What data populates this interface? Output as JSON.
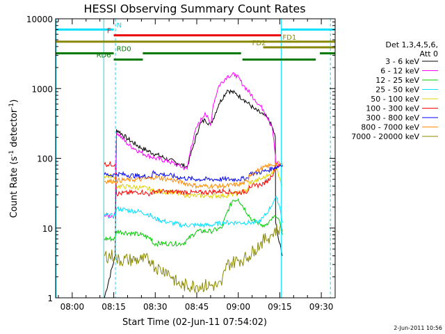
{
  "chart_data": {
    "type": "line",
    "title": "HESSI Observing Summary Count Rates",
    "xlabel": "Start Time (02-Jun-11 07:54:02)",
    "ylabel": "Count Rate (s⁻¹ detector⁻¹)",
    "ylabel_parts": [
      "Count Rate (s",
      "-1",
      " detector",
      "-1",
      ")"
    ],
    "x_unit": "minutes",
    "xlim": [
      474,
      575
    ],
    "ylim": [
      1,
      10000
    ],
    "y_scale": "log",
    "grid": false,
    "legend_position": "right",
    "x_ticks": [
      {
        "value": 480,
        "label": "08:00"
      },
      {
        "value": 495,
        "label": "08:15"
      },
      {
        "value": 510,
        "label": "08:30"
      },
      {
        "value": 525,
        "label": "08:45"
      },
      {
        "value": 540,
        "label": "09:00"
      },
      {
        "value": 555,
        "label": "09:15"
      },
      {
        "value": 570,
        "label": "09:30"
      }
    ],
    "y_ticks": [
      {
        "value": 1,
        "label": "1"
      },
      {
        "value": 10,
        "label": "10"
      },
      {
        "value": 100,
        "label": "100"
      },
      {
        "value": 1000,
        "label": "1000"
      },
      {
        "value": 10000,
        "label": "10000"
      }
    ],
    "legend_header": [
      "Det 1,3,4,5,6,",
      "Att 0"
    ],
    "series": [
      {
        "name": "3 - 6 keV",
        "color": "#000000",
        "x": [
          482.3,
          491.5,
          491.6,
          495.5,
          496.0,
          500,
          505,
          510,
          515,
          518,
          521.5,
          524,
          526,
          528,
          530,
          533,
          536,
          539,
          542,
          546,
          549,
          550.6,
          552.3,
          553.4,
          553.5,
          554.5,
          556
        ],
        "y": [
          null,
          null,
          1.0,
          4.0,
          260,
          190,
          140,
          115,
          95,
          85,
          75,
          160,
          300,
          360,
          300,
          600,
          950,
          850,
          700,
          500,
          420,
          380,
          280,
          200,
          12,
          7,
          4
        ]
      },
      {
        "name": "6 - 12 keV",
        "color": "#ff00ff",
        "x": [
          491.6,
          495.5,
          496.0,
          500,
          505,
          510,
          515,
          518,
          521.5,
          523,
          525,
          528,
          530,
          531,
          533,
          536,
          539,
          542,
          546,
          549,
          551,
          552.3,
          553.4,
          553.5,
          555,
          556
        ],
        "y": [
          15,
          15,
          240,
          160,
          120,
          100,
          90,
          80,
          70,
          150,
          280,
          450,
          300,
          600,
          1100,
          1500,
          1600,
          1100,
          700,
          500,
          360,
          280,
          110,
          85,
          80,
          75
        ]
      },
      {
        "name": "12 - 25 keV",
        "color": "#00cc00",
        "x": [
          491.6,
          495.5,
          496.0,
          505,
          508.8,
          509.0,
          515,
          520,
          522,
          525,
          530,
          534,
          536,
          538,
          540,
          545,
          549,
          550,
          551,
          552,
          553,
          554,
          555,
          556
        ],
        "y": [
          7,
          7,
          9,
          8,
          7,
          6,
          6,
          6,
          7,
          9,
          9,
          10,
          17,
          25,
          26,
          13,
          11,
          11,
          12,
          13,
          15,
          14,
          12,
          8
        ]
      },
      {
        "name": "25 - 50 keV",
        "color": "#00e0ff",
        "x": [
          491.6,
          495.5,
          496.0,
          505,
          508.8,
          509.0,
          515,
          520,
          525,
          530,
          535,
          540,
          544,
          547,
          549,
          551,
          553,
          554,
          555,
          556
        ],
        "y": [
          15,
          15,
          19,
          17,
          15,
          14,
          12,
          11,
          11,
          11,
          12,
          12,
          12,
          12,
          14,
          18,
          25,
          27,
          20,
          12
        ]
      },
      {
        "name": "50 - 100 keV",
        "color": "#e0d000",
        "x": [
          491.6,
          495.5,
          496.0,
          505,
          508.8,
          509.0,
          515,
          520,
          525,
          530,
          535,
          540,
          543.5,
          544,
          546,
          548,
          550,
          551,
          552,
          553,
          554,
          555,
          556
        ],
        "y": [
          55,
          55,
          40,
          38,
          36,
          34,
          33,
          30,
          29,
          29,
          29,
          32,
          35,
          45,
          47,
          50,
          55,
          58,
          62,
          66,
          70,
          52,
          40
        ]
      },
      {
        "name": "100 - 300 keV",
        "color": "#ff0000",
        "x": [
          491.6,
          495.5,
          496.0,
          505,
          508.8,
          509.0,
          515,
          520,
          525,
          530,
          535,
          540,
          543.5,
          544,
          546,
          548,
          550,
          552,
          553.5,
          555,
          556
        ],
        "y": [
          82,
          82,
          31,
          33,
          30,
          34,
          33,
          33,
          32,
          33,
          34,
          32,
          34,
          40,
          40,
          42,
          45,
          55,
          75,
          82,
          80
        ]
      },
      {
        "name": "300 - 800 keV",
        "color": "#0000ff",
        "x": [
          491.6,
          495.5,
          496.0,
          505,
          508.8,
          509.0,
          515,
          520,
          525,
          530,
          535,
          540,
          543.5,
          544,
          547,
          550,
          553,
          555,
          556
        ],
        "y": [
          58,
          58,
          60,
          55,
          55,
          62,
          57,
          52,
          50,
          50,
          50,
          50,
          52,
          60,
          62,
          66,
          73,
          78,
          80
        ]
      },
      {
        "name": "800 - 7000 keV",
        "color": "#ff8800",
        "x": [
          491.6,
          495.5,
          496.0,
          505,
          508.8,
          509.0,
          515,
          520,
          525,
          530,
          535,
          540,
          543.5,
          544,
          548,
          552,
          555,
          556
        ],
        "y": [
          47,
          47,
          48,
          50,
          52,
          54,
          50,
          45,
          40,
          40,
          40,
          42,
          46,
          58,
          70,
          80,
          85,
          82
        ]
      },
      {
        "name": "7000 - 20000 keV",
        "color": "#888800",
        "x": [
          491.6,
          495.5,
          496.0,
          500,
          505,
          508.8,
          509.0,
          512,
          514,
          516,
          518,
          520,
          525,
          530,
          532,
          534,
          535,
          536,
          538,
          540,
          542,
          544,
          546,
          548,
          550,
          552,
          553,
          555,
          556
        ],
        "y": [
          4,
          4,
          3.5,
          3.5,
          3.5,
          3.5,
          3,
          2.5,
          2.5,
          2,
          1.6,
          1.5,
          1.5,
          1.5,
          1.5,
          1.5,
          2.5,
          3,
          3.2,
          3.5,
          3.6,
          4,
          5,
          6,
          7,
          8,
          9,
          10,
          9
        ]
      }
    ],
    "flag_bars": [
      {
        "label": "N",
        "color": "#00e0ff",
        "y": 7000,
        "segments": [
          [
            474,
            495
          ],
          [
            555.5,
            575
          ]
        ],
        "label_x": 496,
        "label_side": "right"
      },
      {
        "label": "F",
        "color": "#ee0000",
        "y": 5800,
        "segments": [
          [
            495,
            555.5
          ]
        ],
        "label_x": 494,
        "label_side": "left"
      },
      {
        "label": "FD1",
        "color": "#888800",
        "y": 4700,
        "segments": [
          [
            474,
            575
          ]
        ],
        "label_x": 556,
        "label_side": "right"
      },
      {
        "label": "FD2",
        "color": "#888800",
        "y": 3900,
        "segments": [
          [
            549,
            575
          ]
        ],
        "label_x": 545,
        "label_side": "right"
      },
      {
        "label": "RD0",
        "color": "#007700",
        "y": 3200,
        "segments": [
          [
            474,
            495
          ],
          [
            505.5,
            541
          ],
          [
            569.5,
            575
          ]
        ],
        "label_x": 496,
        "label_side": "right"
      },
      {
        "label": "RD6",
        "color": "#007700",
        "y": 2600,
        "segments": [
          [
            495,
            505.5
          ],
          [
            541.5,
            568
          ]
        ],
        "label_x": 494,
        "label_side": "left"
      }
    ],
    "vertical_lines": [
      {
        "x": 474.2,
        "color": "#00e0ff",
        "style": "solid"
      },
      {
        "x": 491.4,
        "color": "#00e0ff",
        "style": "solid"
      },
      {
        "x": 495.6,
        "color": "#00e0ff",
        "style": "dashed"
      },
      {
        "x": 555.5,
        "color": "#00e0ff",
        "style": "solid"
      },
      {
        "x": 573.3,
        "color": "#00e0ff",
        "style": "dashed"
      }
    ]
  },
  "footer": {
    "timestamp": "2-Jun-2011 10:56"
  }
}
